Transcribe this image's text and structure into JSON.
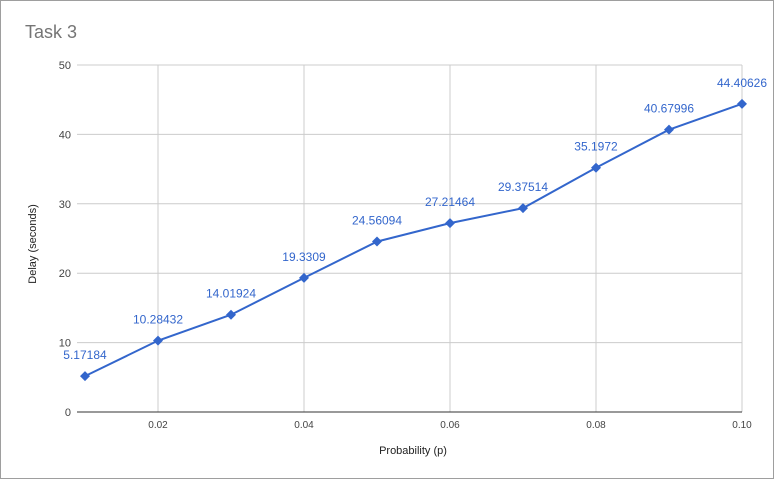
{
  "chart_data": {
    "type": "line",
    "title": "Task 3",
    "xlabel": "Probability (p)",
    "ylabel": "Delay (seconds)",
    "x": [
      0.01,
      0.02,
      0.03,
      0.04,
      0.05,
      0.06,
      0.07,
      0.08,
      0.09,
      0.1
    ],
    "series": [
      {
        "name": "",
        "values": [
          5.17184,
          10.28432,
          14.01924,
          19.3309,
          24.56094,
          27.21464,
          29.37514,
          35.1972,
          40.67996,
          44.40626
        ],
        "data_labels": [
          "5.17184",
          "10.28432",
          "14.01924",
          "19.3309",
          "24.56094",
          "27.21464",
          "29.37514",
          "35.1972",
          "40.67996",
          "44.40626"
        ]
      }
    ],
    "xlim": [
      0.01,
      0.1
    ],
    "ylim": [
      0,
      50
    ],
    "x_ticks": [
      0.02,
      0.04,
      0.06,
      0.08,
      0.1
    ],
    "x_tick_labels": [
      "0.02",
      "0.04",
      "0.06",
      "0.08",
      "0.10"
    ],
    "y_ticks": [
      0,
      10,
      20,
      30,
      40,
      50
    ],
    "y_tick_labels": [
      "0",
      "10",
      "20",
      "30",
      "40",
      "50"
    ],
    "grid": true,
    "legend": "none",
    "colors": {
      "series": "#3366cc",
      "grid": "#cccccc",
      "axis": "#333333",
      "label": "#444444",
      "title": "#757575"
    }
  }
}
